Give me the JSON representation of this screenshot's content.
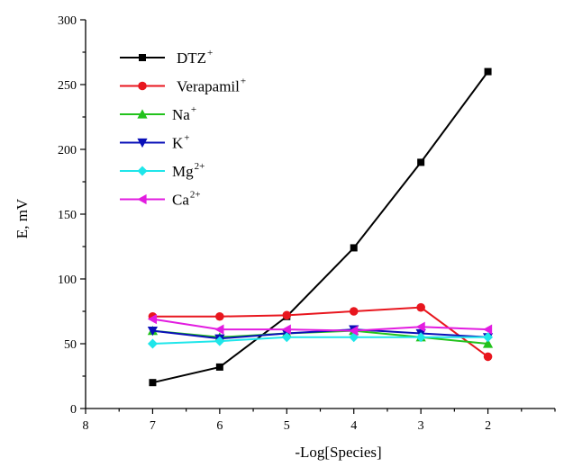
{
  "chart_data": {
    "type": "line",
    "xlabel": "-Log[Species]",
    "ylabel": "E, mV",
    "xlim": [
      8,
      1
    ],
    "ylim": [
      0,
      300
    ],
    "x_ticks": [
      8,
      7,
      6,
      5,
      4,
      3,
      2
    ],
    "y_ticks": [
      0,
      50,
      100,
      150,
      200,
      250,
      300
    ],
    "grid": false,
    "legend_position": "top-left",
    "x": [
      7,
      6,
      5,
      4,
      3,
      2
    ],
    "series": [
      {
        "name": "DTZ",
        "sup": "+",
        "color": "#000000",
        "marker": "square",
        "values": [
          20,
          32,
          71,
          124,
          190,
          260
        ]
      },
      {
        "name": "Verapamil",
        "sup": "+",
        "color": "#e8161e",
        "marker": "circle",
        "values": [
          71,
          71,
          72,
          75,
          78,
          40
        ]
      },
      {
        "name": "Na",
        "sup": "+",
        "color": "#22c21c",
        "marker": "triangle-up",
        "values": [
          60,
          55,
          58,
          60,
          55,
          50
        ]
      },
      {
        "name": "K",
        "sup": "+",
        "color": "#0a10b8",
        "marker": "triangle-down",
        "values": [
          60,
          54,
          58,
          61,
          58,
          55
        ]
      },
      {
        "name": "Mg",
        "sup": "2+",
        "color": "#1fe6ea",
        "marker": "diamond",
        "values": [
          50,
          52,
          55,
          55,
          55,
          55
        ]
      },
      {
        "name": "Ca",
        "sup": "2+",
        "color": "#e21ce0",
        "marker": "triangle-left",
        "values": [
          69,
          61,
          61,
          60,
          63,
          61
        ]
      }
    ]
  }
}
